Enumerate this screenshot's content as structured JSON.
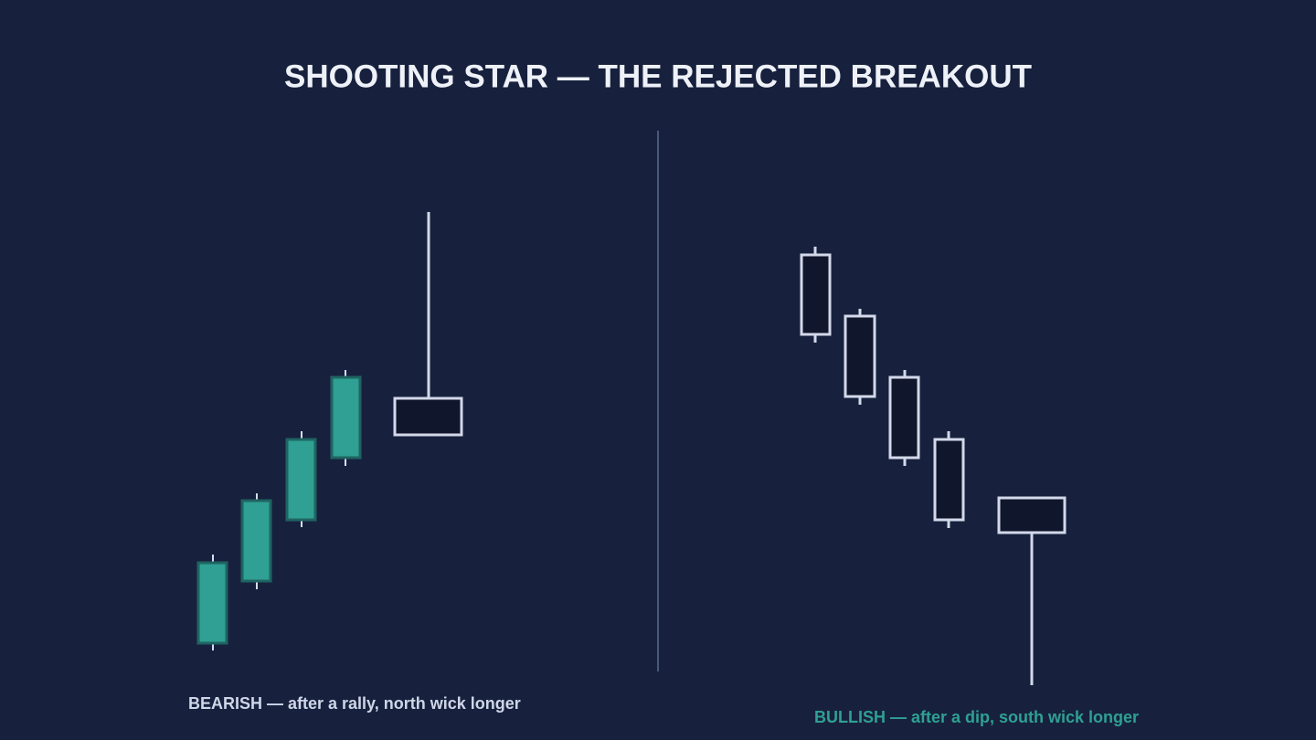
{
  "header": {
    "title": "SHOOTING STAR — THE REJECTED BREAKOUT"
  },
  "panels": [
    {
      "caption": "BEARISH — after a rally, north wick longer"
    },
    {
      "caption": "BULLISH — after a dip, south wick longer"
    }
  ]
}
